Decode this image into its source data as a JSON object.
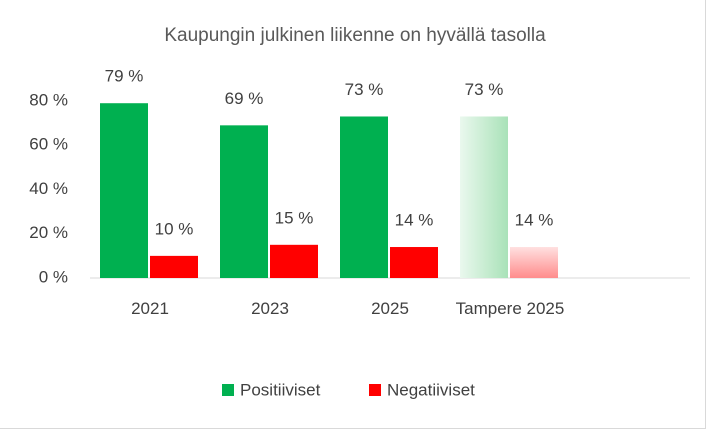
{
  "chart_data": {
    "type": "bar",
    "title": "Kaupungin julkinen liikenne on hyvällä tasolla",
    "categories": [
      "2021",
      "2023",
      "2025",
      "Tampere 2025",
      null
    ],
    "series": [
      {
        "name": "Positiiviset",
        "color": "#00b050",
        "values": [
          79,
          69,
          73,
          73,
          null
        ],
        "value_labels": [
          "79 %",
          "69 %",
          "73 %",
          "73 %",
          null
        ]
      },
      {
        "name": "Negatiiviset",
        "color": "#ff0000",
        "values": [
          10,
          15,
          14,
          14,
          null
        ],
        "value_labels": [
          "10 %",
          "15 %",
          "14 %",
          "14 %",
          null
        ]
      }
    ],
    "ylim": [
      0,
      80
    ],
    "yticks": [
      {
        "value": 0,
        "label": "0 %"
      },
      {
        "value": 20,
        "label": "20 %"
      },
      {
        "value": 40,
        "label": "40 %"
      },
      {
        "value": 60,
        "label": "60 %"
      },
      {
        "value": 80,
        "label": "80 %"
      }
    ],
    "grid": false,
    "legend": "bottom"
  }
}
